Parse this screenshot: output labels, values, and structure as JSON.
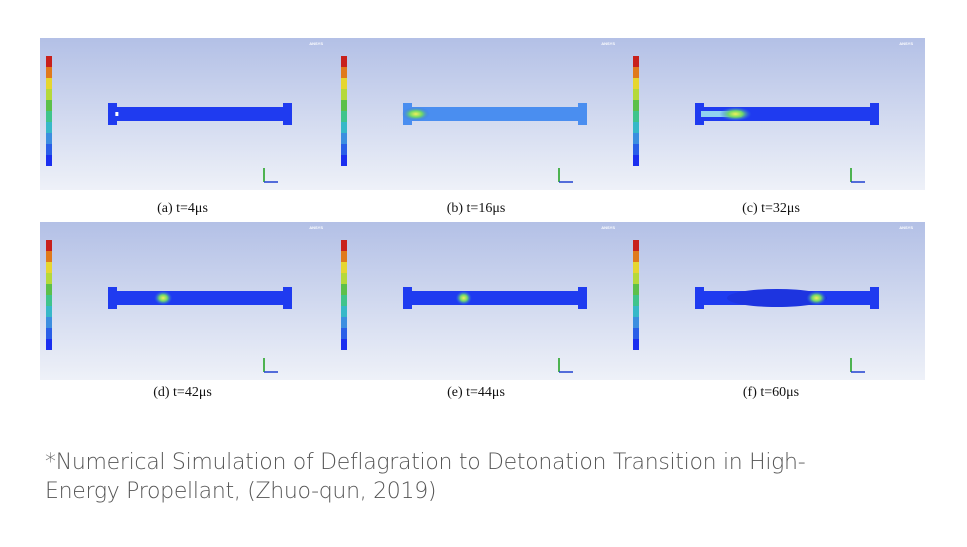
{
  "figure": {
    "watermark": "ANSYS",
    "panels": [
      {
        "caption": "(a) t=4μs"
      },
      {
        "caption": "(b) t=16μs"
      },
      {
        "caption": "(c) t=32μs"
      },
      {
        "caption": "(d) t=42μs"
      },
      {
        "caption": "(e) t=44μs"
      },
      {
        "caption": "(f) t=60μs"
      }
    ]
  },
  "footnote": "*Numerical Simulation of Deflagration to Detonation Transition in High-Energy Propellant, (Zhuo-qun, 2019)"
}
